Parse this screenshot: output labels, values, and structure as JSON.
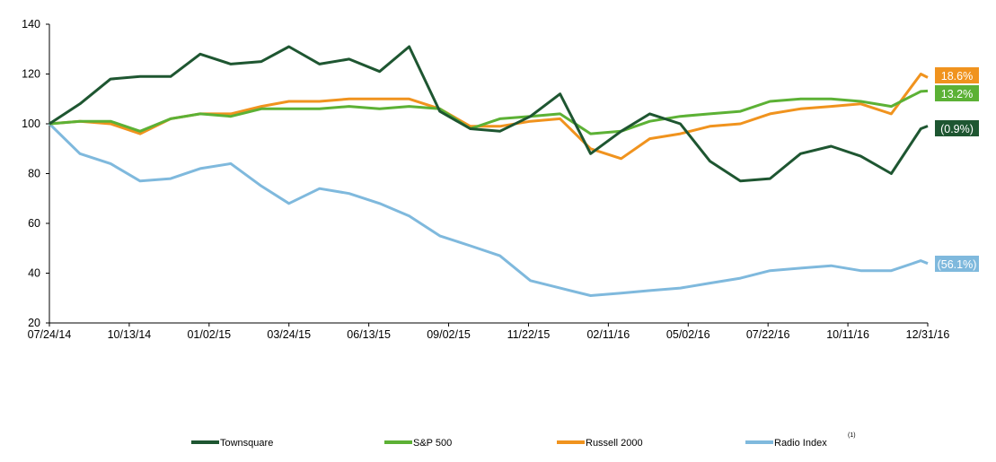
{
  "chart_data": {
    "type": "line",
    "title": "",
    "xlabel": "",
    "ylabel": "",
    "ylim": [
      20,
      140
    ],
    "yticks": [
      20,
      40,
      60,
      80,
      100,
      120,
      140
    ],
    "xlim": [
      "2014-07-24",
      "2016-12-31"
    ],
    "xtick_labels": [
      "07/24/14",
      "10/13/14",
      "01/02/15",
      "03/24/15",
      "06/13/15",
      "09/02/15",
      "11/22/15",
      "02/11/16",
      "05/02/16",
      "07/22/16",
      "10/11/16",
      "12/31/16"
    ],
    "xtick_dates": [
      "2014-07-24",
      "2014-10-13",
      "2015-01-02",
      "2015-03-24",
      "2015-06-13",
      "2015-09-02",
      "2015-11-22",
      "2016-02-11",
      "2016-05-02",
      "2016-07-22",
      "2016-10-11",
      "2016-12-31"
    ],
    "grid": false,
    "legend_position": "bottom",
    "x": [
      "2014-07-24",
      "2014-08-24",
      "2014-09-24",
      "2014-10-24",
      "2014-11-24",
      "2014-12-24",
      "2015-01-24",
      "2015-02-24",
      "2015-03-24",
      "2015-04-24",
      "2015-05-24",
      "2015-06-24",
      "2015-07-24",
      "2015-08-24",
      "2015-09-24",
      "2015-10-24",
      "2015-11-24",
      "2015-12-24",
      "2016-01-24",
      "2016-02-24",
      "2016-03-24",
      "2016-04-24",
      "2016-05-24",
      "2016-06-24",
      "2016-07-24",
      "2016-08-24",
      "2016-09-24",
      "2016-10-24",
      "2016-11-24",
      "2016-12-24",
      "2016-12-31"
    ],
    "series": [
      {
        "name": "Townsquare",
        "color": "#1e5631",
        "end_label": "(0.9%)",
        "values": [
          100,
          108,
          118,
          119,
          119,
          128,
          124,
          125,
          131,
          124,
          126,
          121,
          131,
          105,
          98,
          97,
          103,
          112,
          88,
          97,
          104,
          100,
          85,
          77,
          78,
          88,
          91,
          87,
          80,
          98,
          99.1
        ]
      },
      {
        "name": "S&P 500",
        "color": "#5cb135",
        "end_label": "13.2%",
        "values": [
          100,
          101,
          101,
          97,
          102,
          104,
          103,
          106,
          106,
          106,
          107,
          106,
          107,
          106,
          98,
          102,
          103,
          104,
          96,
          97,
          101,
          103,
          104,
          105,
          109,
          110,
          110,
          109,
          107,
          113,
          113.2
        ]
      },
      {
        "name": "Russell 2000",
        "color": "#f0931e",
        "end_label": "18.6%",
        "values": [
          100,
          101,
          100,
          96,
          102,
          104,
          104,
          107,
          109,
          109,
          110,
          110,
          110,
          106,
          99,
          99,
          101,
          102,
          90,
          86,
          94,
          96,
          99,
          100,
          104,
          106,
          107,
          108,
          104,
          120,
          118.6
        ]
      },
      {
        "name": "Radio Index",
        "color": "#7fb9dd",
        "end_label": "(56.1%)",
        "superscript": "(1)",
        "values": [
          100,
          88,
          84,
          77,
          78,
          82,
          84,
          75,
          68,
          74,
          72,
          68,
          63,
          55,
          51,
          47,
          37,
          34,
          31,
          32,
          33,
          34,
          36,
          38,
          41,
          42,
          43,
          41,
          41,
          45,
          43.9
        ]
      }
    ]
  }
}
